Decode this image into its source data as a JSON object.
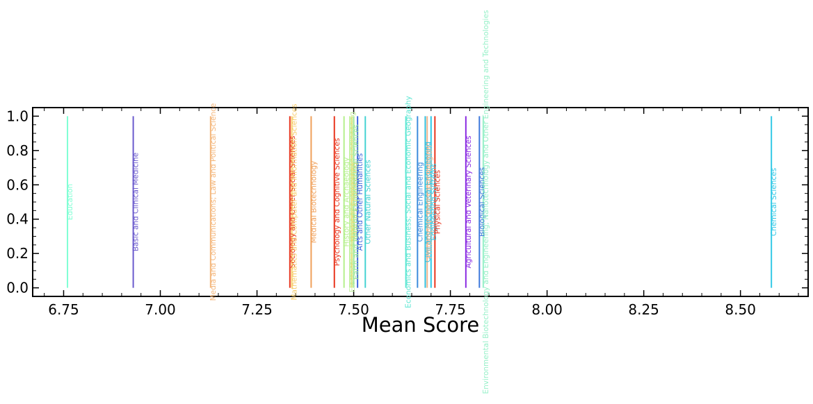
{
  "chart_data": {
    "type": "eventplot",
    "xlabel": "Mean Score",
    "ylabel": "",
    "title": "",
    "xlim": [
      6.67,
      8.675
    ],
    "ylim": [
      -0.05,
      1.05
    ],
    "x_ticks": [
      6.75,
      7.0,
      7.25,
      7.5,
      7.75,
      8.0,
      8.25,
      8.5
    ],
    "x_tick_labels": [
      "6.75",
      "7.00",
      "7.25",
      "7.50",
      "7.75",
      "8.00",
      "8.25",
      "8.50"
    ],
    "y_ticks": [
      0.0,
      0.2,
      0.4,
      0.6,
      0.8,
      1.0
    ],
    "y_tick_labels": [
      "0.0",
      "0.2",
      "0.4",
      "0.6",
      "0.8",
      "1.0"
    ],
    "grid": false,
    "events": [
      {
        "label": "Education",
        "x": 6.76,
        "color": "#7fffd4"
      },
      {
        "label": "Basic and Clinical Medicine",
        "x": 6.93,
        "color": "#6a5acd"
      },
      {
        "label": "Media and Communications; Law and Political Science",
        "x": 7.13,
        "color": "#f4b67a"
      },
      {
        "label": "Sociology and Other Social Sciences",
        "x": 7.335,
        "color": "#e8341c"
      },
      {
        "label": "Mathematics and Computer and Information Sciences",
        "x": 7.34,
        "color": "#f7cd6b"
      },
      {
        "label": "Medical Biotechnology",
        "x": 7.39,
        "color": "#f0a05a"
      },
      {
        "label": "Psychology and Cognitive Sciences",
        "x": 7.45,
        "color": "#e8341c"
      },
      {
        "label": "History and Archaeology",
        "x": 7.475,
        "color": "#b4f08c"
      },
      {
        "label": "Electrical, Electronic and Information Engineering",
        "x": 7.49,
        "color": "#c3f0a0"
      },
      {
        "label": "Materials Engineering",
        "x": 7.495,
        "color": "#e6dc6e"
      },
      {
        "label": "Earth and Related Environmental Sciences",
        "x": 7.5,
        "color": "#9be69b"
      },
      {
        "label": "Arts and Other Humanities",
        "x": 7.51,
        "color": "#3c64dc"
      },
      {
        "label": "Other Natural Sciences",
        "x": 7.53,
        "color": "#46d2d2"
      },
      {
        "label": "Economics and Business; Social and Economic Geography",
        "x": 7.635,
        "color": "#5ae6d2"
      },
      {
        "label": "Chemical Engineering",
        "x": 7.665,
        "color": "#3c8cdc"
      },
      {
        "label": "Civil and Mechanical Engineering",
        "x": 7.685,
        "color": "#32bedc"
      },
      {
        "label": "Philosophy, Ethics and Religion",
        "x": 7.69,
        "color": "#f0b48c"
      },
      {
        "label": "Engineering Systems",
        "x": 7.7,
        "color": "#2dc8e6"
      },
      {
        "label": "Physical Sciences",
        "x": 7.71,
        "color": "#e8341c"
      },
      {
        "label": "Agricultural and Veterinary Sciences",
        "x": 7.79,
        "color": "#8a2be2"
      },
      {
        "label": "Biological Sciences",
        "x": 7.825,
        "color": "#3c78dc"
      },
      {
        "label": "Environmental Biotechnology and Engineering; Nanotechnology and Other Engineering and Technologies",
        "x": 7.835,
        "color": "#96f0c8"
      },
      {
        "label": "Chemical Sciences",
        "x": 8.58,
        "color": "#32c8e6"
      }
    ]
  }
}
